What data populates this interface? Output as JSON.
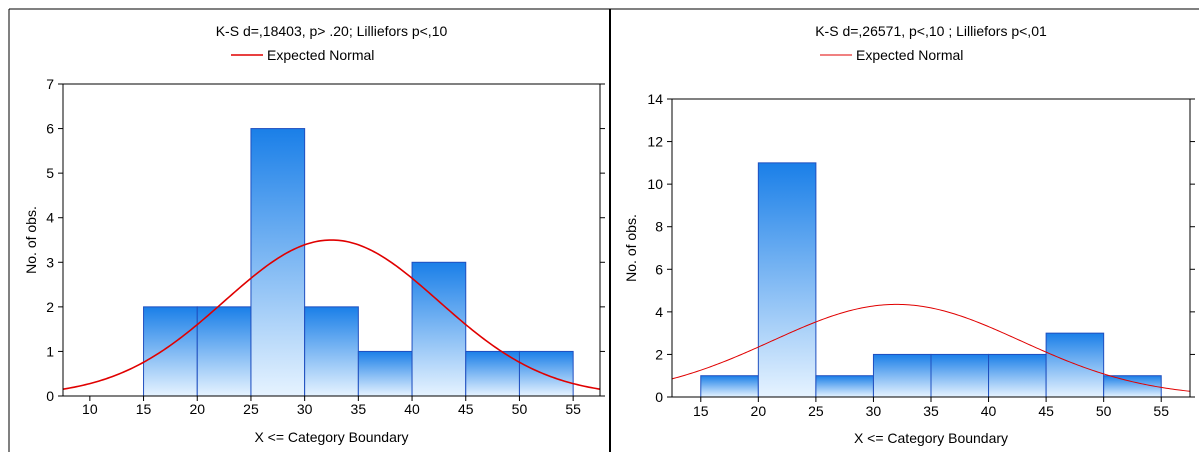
{
  "chart_data": [
    {
      "type": "bar",
      "title": "K-S d=,18403, p> .20; Lilliefors p<,10",
      "legend": {
        "entries": [
          "Expected Normal"
        ],
        "placement": "top"
      },
      "xlabel": "X <= Category Boundary",
      "ylabel": "No. of obs.",
      "xlim": [
        7.5,
        57.5
      ],
      "ylim": [
        0,
        7
      ],
      "x_ticks": [
        10,
        15,
        20,
        25,
        30,
        35,
        40,
        45,
        50,
        55
      ],
      "y_ticks": [
        0,
        1,
        2,
        3,
        4,
        5,
        6,
        7
      ],
      "bins": [
        {
          "from": 15,
          "to": 20,
          "count": 2
        },
        {
          "from": 20,
          "to": 25,
          "count": 2
        },
        {
          "from": 25,
          "to": 30,
          "count": 6
        },
        {
          "from": 30,
          "to": 35,
          "count": 2
        },
        {
          "from": 35,
          "to": 40,
          "count": 1
        },
        {
          "from": 40,
          "to": 45,
          "count": 3
        },
        {
          "from": 45,
          "to": 50,
          "count": 1
        },
        {
          "from": 50,
          "to": 55,
          "count": 1
        }
      ],
      "normal_curve": {
        "mean": 32.5,
        "sd": 10.0,
        "peak": 3.5
      },
      "grid": false,
      "colors": {
        "bar_top": "#1a7fe8",
        "bar_bottom": "#e6f3ff",
        "bar_edge": "#1f4fbf",
        "curve": "#e00000"
      }
    },
    {
      "type": "bar",
      "title": "K-S d=,26571, p<,10 ; Lilliefors p<,01",
      "legend": {
        "entries": [
          "Expected Normal"
        ],
        "placement": "top"
      },
      "xlabel": "X <= Category Boundary",
      "ylabel": "No. of obs.",
      "xlim": [
        12.5,
        57.5
      ],
      "ylim": [
        0,
        14
      ],
      "x_ticks": [
        15,
        20,
        25,
        30,
        35,
        40,
        45,
        50,
        55
      ],
      "y_ticks": [
        0,
        2,
        4,
        6,
        8,
        10,
        12,
        14
      ],
      "bins": [
        {
          "from": 15,
          "to": 20,
          "count": 1
        },
        {
          "from": 20,
          "to": 25,
          "count": 11
        },
        {
          "from": 25,
          "to": 30,
          "count": 1
        },
        {
          "from": 30,
          "to": 35,
          "count": 2
        },
        {
          "from": 35,
          "to": 40,
          "count": 2
        },
        {
          "from": 40,
          "to": 45,
          "count": 2
        },
        {
          "from": 45,
          "to": 50,
          "count": 3
        },
        {
          "from": 50,
          "to": 55,
          "count": 1
        }
      ],
      "normal_curve": {
        "mean": 32.0,
        "sd": 10.8,
        "peak": 4.35
      },
      "grid": false,
      "colors": {
        "bar_top": "#1a7fe8",
        "bar_bottom": "#e6f3ff",
        "bar_edge": "#1f4fbf",
        "curve": "#e00000"
      }
    }
  ]
}
